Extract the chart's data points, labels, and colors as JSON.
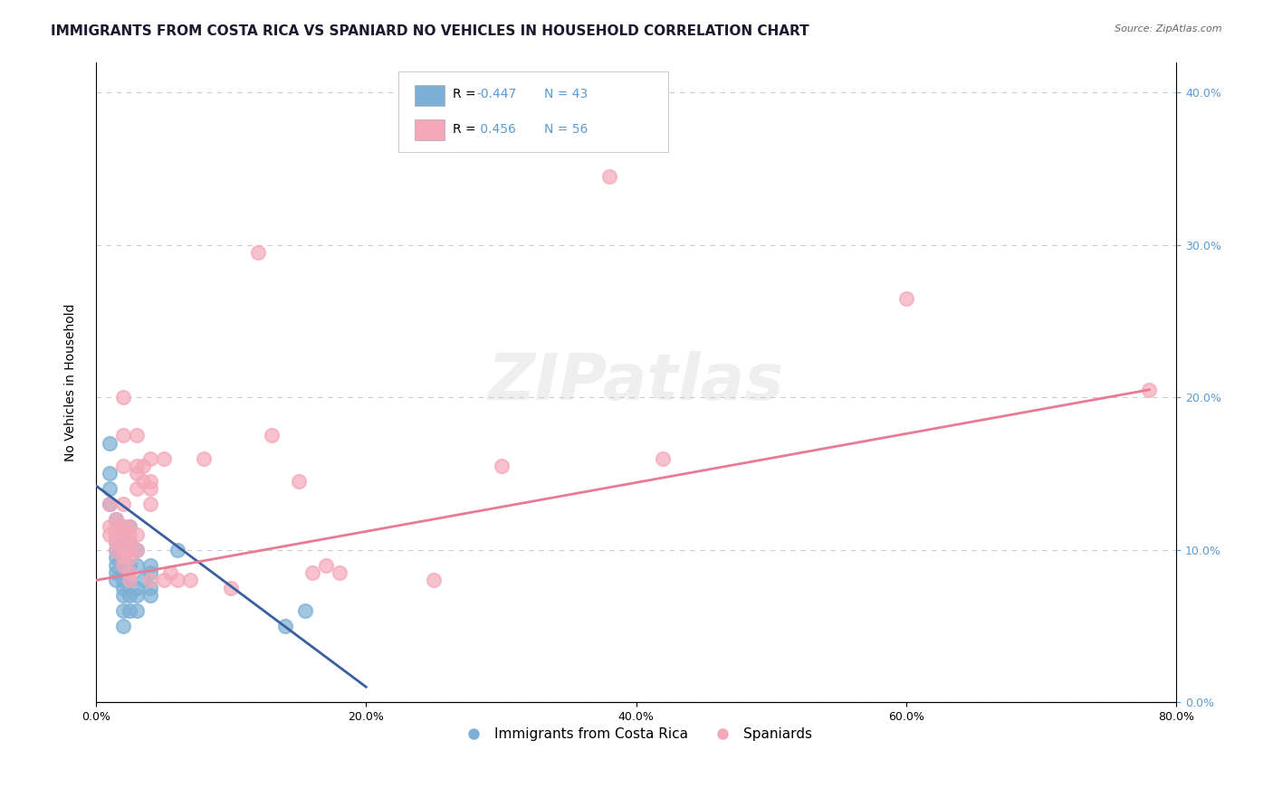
{
  "title": "IMMIGRANTS FROM COSTA RICA VS SPANIARD NO VEHICLES IN HOUSEHOLD CORRELATION CHART",
  "source": "Source: ZipAtlas.com",
  "ylabel": "No Vehicles in Household",
  "xlim": [
    0.0,
    0.8
  ],
  "ylim": [
    0.0,
    0.42
  ],
  "color_blue": "#7bafd4",
  "color_pink": "#f4a8b8",
  "line_color_blue": "#3a5fa0",
  "line_color_pink": "#e87a94",
  "watermark": "ZIPatlas",
  "blue_scatter": [
    [
      0.01,
      0.17
    ],
    [
      0.01,
      0.15
    ],
    [
      0.01,
      0.14
    ],
    [
      0.01,
      0.13
    ],
    [
      0.015,
      0.12
    ],
    [
      0.015,
      0.11
    ],
    [
      0.015,
      0.105
    ],
    [
      0.015,
      0.1
    ],
    [
      0.015,
      0.095
    ],
    [
      0.015,
      0.09
    ],
    [
      0.015,
      0.085
    ],
    [
      0.015,
      0.08
    ],
    [
      0.02,
      0.115
    ],
    [
      0.02,
      0.11
    ],
    [
      0.02,
      0.105
    ],
    [
      0.02,
      0.1
    ],
    [
      0.02,
      0.095
    ],
    [
      0.02,
      0.09
    ],
    [
      0.02,
      0.085
    ],
    [
      0.02,
      0.08
    ],
    [
      0.02,
      0.075
    ],
    [
      0.02,
      0.07
    ],
    [
      0.02,
      0.06
    ],
    [
      0.02,
      0.05
    ],
    [
      0.025,
      0.115
    ],
    [
      0.025,
      0.105
    ],
    [
      0.025,
      0.09
    ],
    [
      0.025,
      0.08
    ],
    [
      0.025,
      0.07
    ],
    [
      0.025,
      0.06
    ],
    [
      0.03,
      0.1
    ],
    [
      0.03,
      0.09
    ],
    [
      0.03,
      0.075
    ],
    [
      0.03,
      0.07
    ],
    [
      0.03,
      0.06
    ],
    [
      0.035,
      0.08
    ],
    [
      0.04,
      0.09
    ],
    [
      0.04,
      0.085
    ],
    [
      0.04,
      0.075
    ],
    [
      0.04,
      0.07
    ],
    [
      0.06,
      0.1
    ],
    [
      0.14,
      0.05
    ],
    [
      0.155,
      0.06
    ]
  ],
  "pink_scatter": [
    [
      0.01,
      0.13
    ],
    [
      0.01,
      0.115
    ],
    [
      0.01,
      0.11
    ],
    [
      0.015,
      0.12
    ],
    [
      0.015,
      0.115
    ],
    [
      0.015,
      0.11
    ],
    [
      0.015,
      0.105
    ],
    [
      0.015,
      0.1
    ],
    [
      0.02,
      0.2
    ],
    [
      0.02,
      0.175
    ],
    [
      0.02,
      0.155
    ],
    [
      0.02,
      0.13
    ],
    [
      0.02,
      0.115
    ],
    [
      0.02,
      0.11
    ],
    [
      0.02,
      0.1
    ],
    [
      0.02,
      0.095
    ],
    [
      0.02,
      0.09
    ],
    [
      0.025,
      0.115
    ],
    [
      0.025,
      0.11
    ],
    [
      0.025,
      0.105
    ],
    [
      0.025,
      0.1
    ],
    [
      0.025,
      0.095
    ],
    [
      0.025,
      0.085
    ],
    [
      0.025,
      0.08
    ],
    [
      0.03,
      0.175
    ],
    [
      0.03,
      0.155
    ],
    [
      0.03,
      0.15
    ],
    [
      0.03,
      0.14
    ],
    [
      0.03,
      0.11
    ],
    [
      0.03,
      0.1
    ],
    [
      0.035,
      0.155
    ],
    [
      0.035,
      0.145
    ],
    [
      0.04,
      0.16
    ],
    [
      0.04,
      0.145
    ],
    [
      0.04,
      0.14
    ],
    [
      0.04,
      0.13
    ],
    [
      0.04,
      0.08
    ],
    [
      0.05,
      0.16
    ],
    [
      0.05,
      0.08
    ],
    [
      0.055,
      0.085
    ],
    [
      0.06,
      0.08
    ],
    [
      0.07,
      0.08
    ],
    [
      0.08,
      0.16
    ],
    [
      0.1,
      0.075
    ],
    [
      0.12,
      0.295
    ],
    [
      0.13,
      0.175
    ],
    [
      0.15,
      0.145
    ],
    [
      0.16,
      0.085
    ],
    [
      0.17,
      0.09
    ],
    [
      0.18,
      0.085
    ],
    [
      0.25,
      0.08
    ],
    [
      0.3,
      0.155
    ],
    [
      0.38,
      0.345
    ],
    [
      0.42,
      0.16
    ],
    [
      0.6,
      0.265
    ],
    [
      0.78,
      0.205
    ]
  ],
  "blue_line": [
    [
      0.0,
      0.142
    ],
    [
      0.2,
      0.01
    ]
  ],
  "pink_line": [
    [
      0.0,
      0.08
    ],
    [
      0.78,
      0.205
    ]
  ],
  "grid_color": "#cccccc",
  "bg_color": "#ffffff",
  "title_fontsize": 11,
  "axis_fontsize": 9,
  "legend_fontsize": 10
}
